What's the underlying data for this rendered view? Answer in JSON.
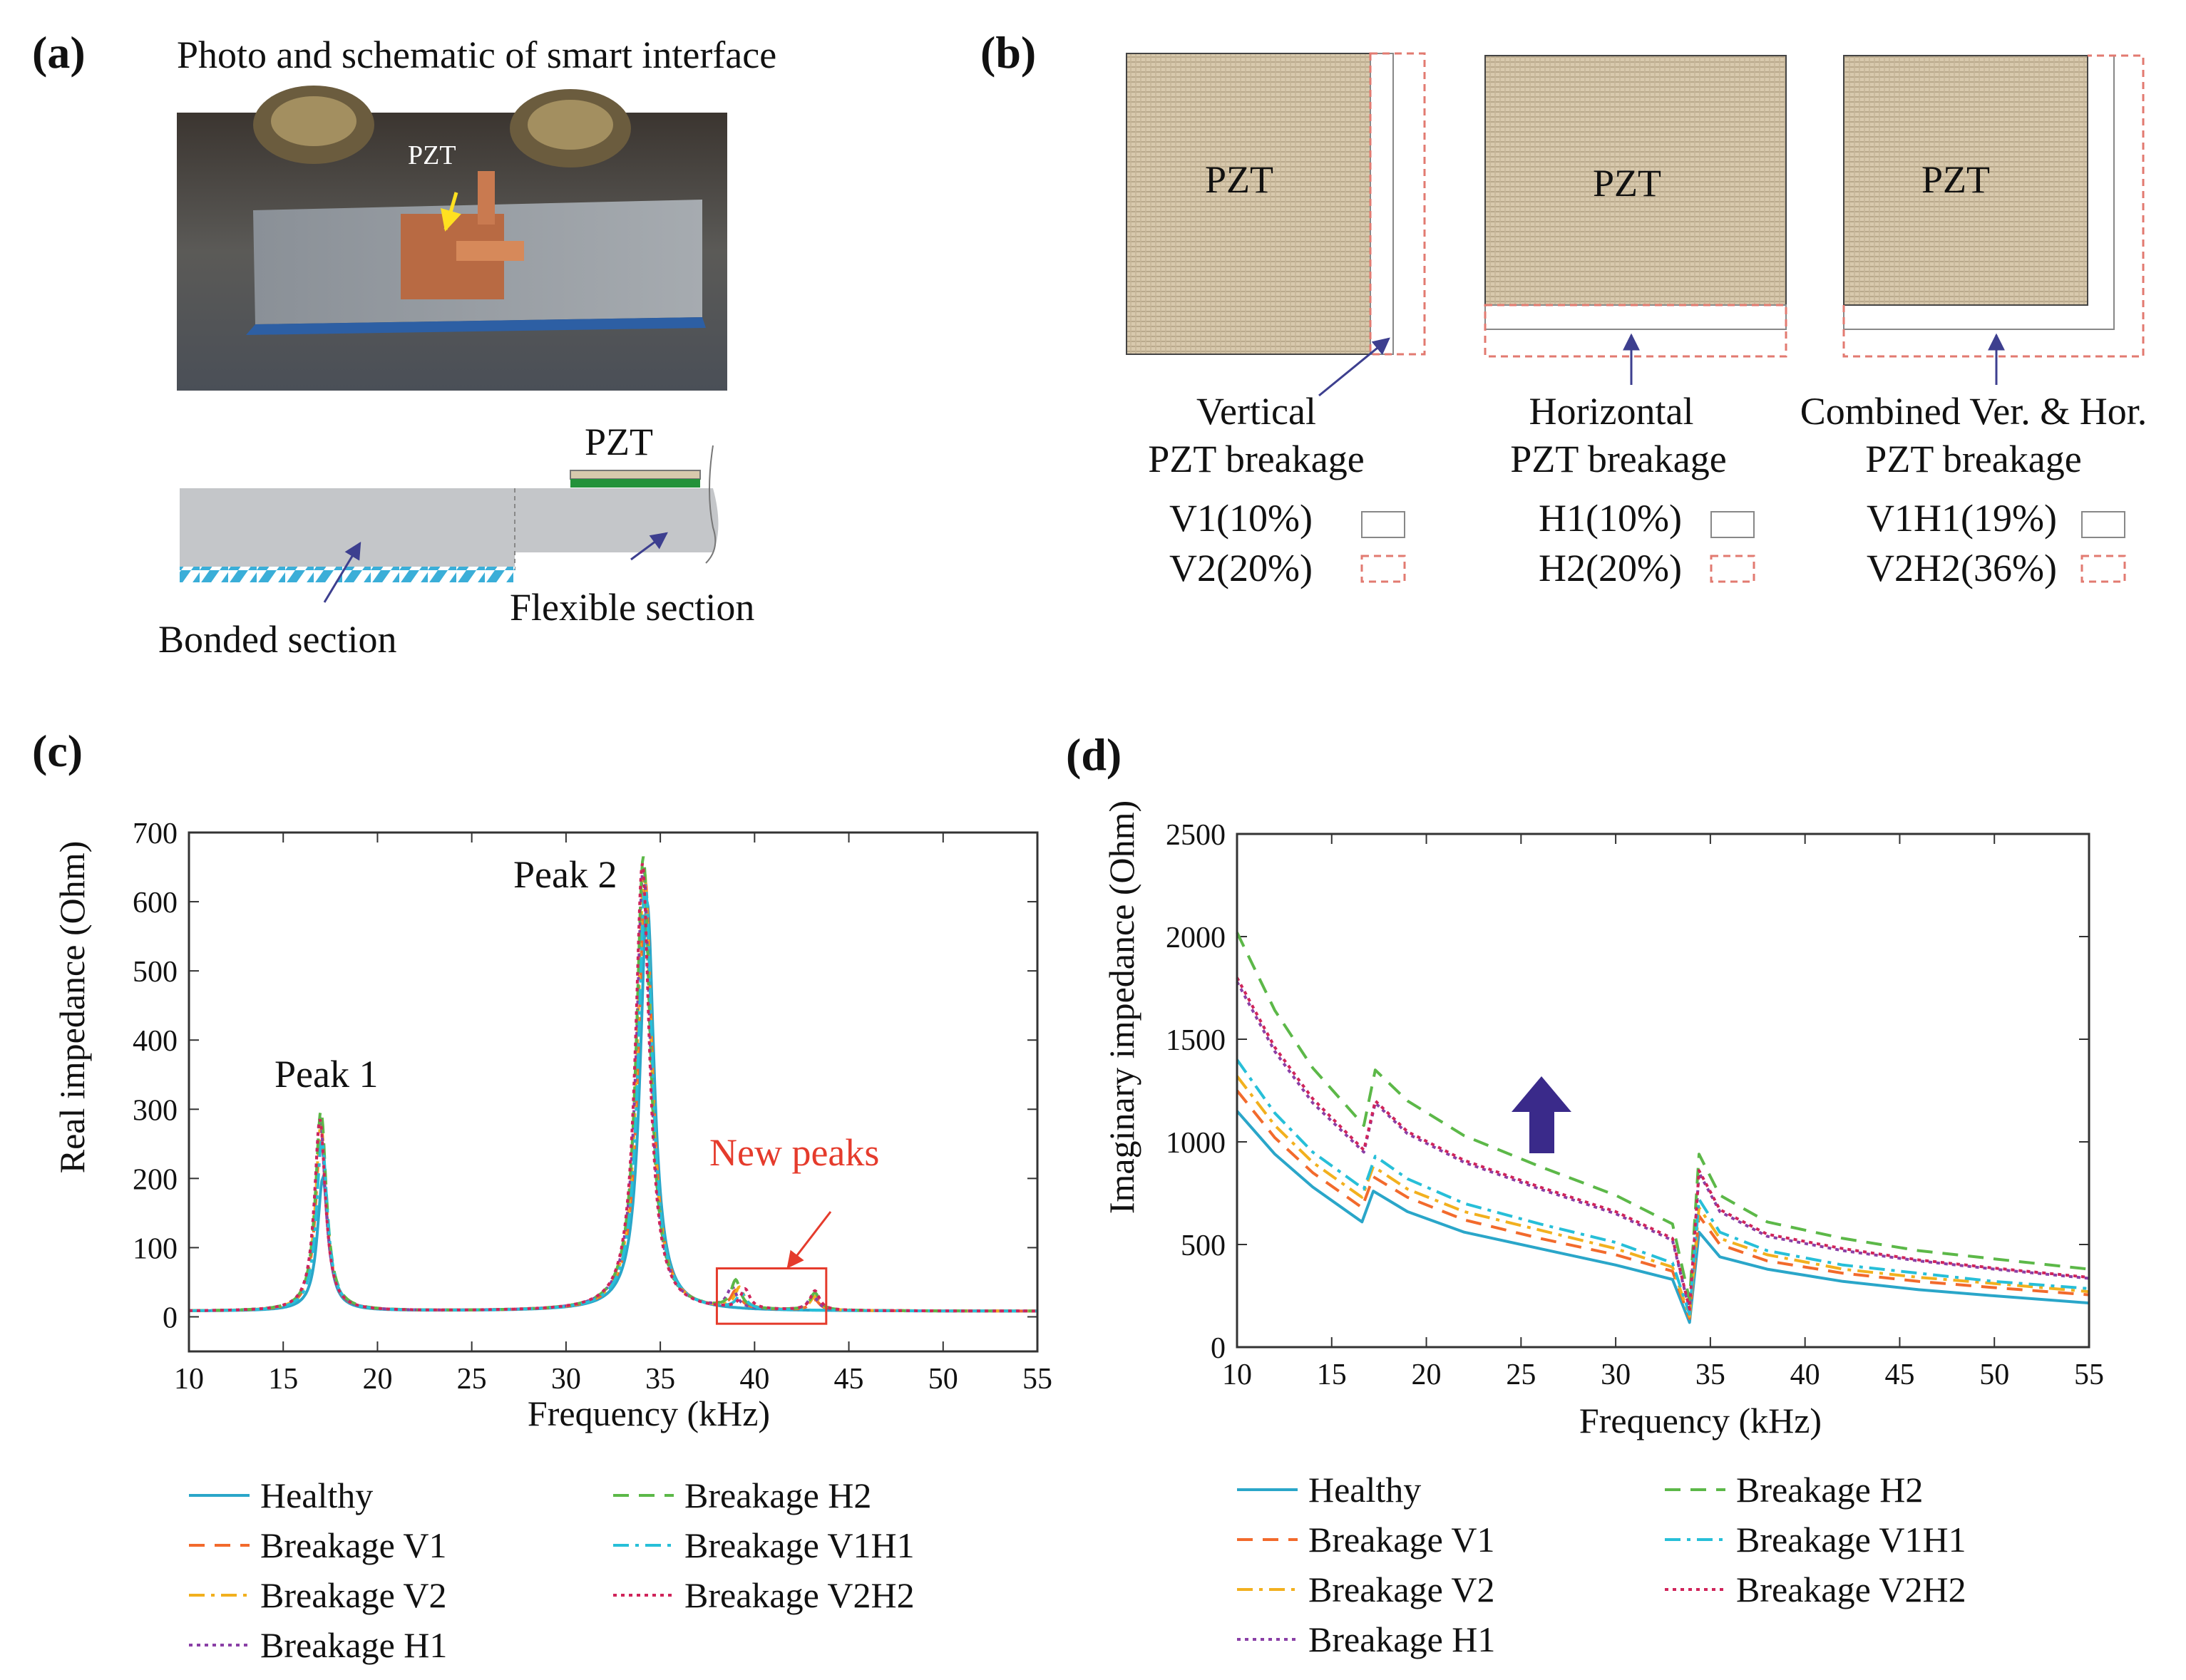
{
  "panel_a": {
    "label": "(a)",
    "title": "Photo and schematic of smart interface",
    "photo_label": "PZT",
    "schematic_label": "PZT",
    "bonded_label": "Bonded section",
    "flexible_label": "Flexible section"
  },
  "panel_b": {
    "label": "(b)",
    "pzt_text": "PZT",
    "groups": [
      {
        "title1": "Vertical",
        "title2": "PZT breakage",
        "solid_label": "V1(10%)",
        "dashed_label": "V2(20%)"
      },
      {
        "title1": "Horizontal",
        "title2": "PZT breakage",
        "solid_label": "H1(10%)",
        "dashed_label": "H2(20%)"
      },
      {
        "title1": "Combined Ver. & Hor.",
        "title2": "PZT breakage",
        "solid_label": "V1H1(19%)",
        "dashed_label": "V2H2(36%)"
      }
    ]
  },
  "colors": {
    "Healthy": "#2aa6c9",
    "Breakage V1": "#f26a2c",
    "Breakage V2": "#f2b01e",
    "Breakage H1": "#8a3fa6",
    "Breakage H2": "#5cb848",
    "Breakage V1H1": "#27bfd8",
    "Breakage V2H2": "#d0245a",
    "annotation": "#e53b2c",
    "arrow_big": "#3a2a8a",
    "arrow_small": "#3d3f8f",
    "pzt_fill": "#d8c9ad"
  },
  "legend_styles": {
    "Healthy": "solid",
    "Breakage V1": "dashed",
    "Breakage V2": "dashdot",
    "Breakage H1": "dotted",
    "Breakage H2": "dashed",
    "Breakage V1H1": "dashdot",
    "Breakage V2H2": "dotted"
  },
  "chart_data": [
    {
      "id": "c",
      "panel_label": "(c)",
      "type": "line",
      "xlabel": "Frequency (kHz)",
      "ylabel": "Real impedance (Ohm)",
      "xlim": [
        10,
        55
      ],
      "ylim": [
        -50,
        700
      ],
      "xticks": [
        10,
        15,
        20,
        25,
        30,
        35,
        40,
        45,
        50,
        55
      ],
      "yticks": [
        0,
        100,
        200,
        300,
        400,
        500,
        600,
        700
      ],
      "annotations": {
        "peak1": "Peak 1",
        "peak2": "Peak 2",
        "new_peaks": "New peaks"
      },
      "new_peaks_region": {
        "x": [
          38,
          43.8
        ],
        "y": [
          -10,
          70
        ]
      },
      "series": [
        {
          "name": "Healthy",
          "peak1": [
            17.1,
            200
          ],
          "peak2": [
            34.3,
            600
          ],
          "extra": []
        },
        {
          "name": "Breakage V1",
          "peak1": [
            17.0,
            262
          ],
          "peak2": [
            34.2,
            630
          ],
          "extra": [
            [
              39.0,
              25
            ],
            [
              43.2,
              15
            ]
          ]
        },
        {
          "name": "Breakage V2",
          "peak1": [
            17.0,
            278
          ],
          "peak2": [
            34.15,
            645
          ],
          "extra": [
            [
              39.2,
              30
            ],
            [
              43.2,
              20
            ]
          ]
        },
        {
          "name": "Breakage H1",
          "peak1": [
            16.95,
            288
          ],
          "peak2": [
            34.1,
            650
          ],
          "extra": [
            [
              38.8,
              30
            ],
            [
              43.1,
              22
            ]
          ]
        },
        {
          "name": "Breakage H2",
          "peak1": [
            17.0,
            298
          ],
          "peak2": [
            34.1,
            665
          ],
          "extra": [
            [
              39.0,
              40
            ],
            [
              43.2,
              25
            ]
          ]
        },
        {
          "name": "Breakage V1H1",
          "peak1": [
            17.05,
            255
          ],
          "peak2": [
            34.2,
            625
          ],
          "extra": [
            [
              39.3,
              22
            ]
          ]
        },
        {
          "name": "Breakage V2H2",
          "peak1": [
            16.95,
            285
          ],
          "peak2": [
            34.05,
            655
          ],
          "extra": [
            [
              39.5,
              28
            ],
            [
              43.2,
              28
            ]
          ]
        }
      ]
    },
    {
      "id": "d",
      "panel_label": "(d)",
      "type": "line",
      "xlabel": "Frequency (kHz)",
      "ylabel": "Imaginary impedance (Ohm)",
      "xlim": [
        10,
        55
      ],
      "ylim": [
        0,
        2500
      ],
      "xticks": [
        10,
        15,
        20,
        25,
        30,
        35,
        40,
        45,
        50,
        55
      ],
      "yticks": [
        0,
        500,
        1000,
        1500,
        2000,
        2500
      ],
      "series": [
        {
          "name": "Healthy",
          "points": [
            [
              10,
              1150
            ],
            [
              12,
              940
            ],
            [
              14,
              780
            ],
            [
              16.6,
              610
            ],
            [
              17.2,
              760
            ],
            [
              19,
              660
            ],
            [
              22,
              560
            ],
            [
              26,
              480
            ],
            [
              30,
              400
            ],
            [
              33,
              330
            ],
            [
              33.9,
              120
            ],
            [
              34.4,
              560
            ],
            [
              35.5,
              440
            ],
            [
              38,
              380
            ],
            [
              42,
              320
            ],
            [
              46,
              280
            ],
            [
              50,
              250
            ],
            [
              55,
              215
            ]
          ]
        },
        {
          "name": "Breakage V1",
          "points": [
            [
              10,
              1250
            ],
            [
              12,
              1020
            ],
            [
              14,
              850
            ],
            [
              16.6,
              680
            ],
            [
              17.2,
              830
            ],
            [
              19,
              730
            ],
            [
              22,
              620
            ],
            [
              26,
              530
            ],
            [
              30,
              450
            ],
            [
              33,
              370
            ],
            [
              33.9,
              140
            ],
            [
              34.4,
              640
            ],
            [
              35.5,
              500
            ],
            [
              38,
              420
            ],
            [
              42,
              360
            ],
            [
              46,
              320
            ],
            [
              50,
              290
            ],
            [
              55,
              255
            ]
          ]
        },
        {
          "name": "Breakage V2",
          "points": [
            [
              10,
              1320
            ],
            [
              12,
              1080
            ],
            [
              14,
              900
            ],
            [
              16.6,
              730
            ],
            [
              17.2,
              880
            ],
            [
              19,
              770
            ],
            [
              22,
              660
            ],
            [
              26,
              570
            ],
            [
              30,
              480
            ],
            [
              33,
              390
            ],
            [
              33.9,
              150
            ],
            [
              34.4,
              680
            ],
            [
              35.5,
              530
            ],
            [
              38,
              450
            ],
            [
              42,
              380
            ],
            [
              46,
              340
            ],
            [
              50,
              310
            ],
            [
              55,
              270
            ]
          ]
        },
        {
          "name": "Breakage H1",
          "points": [
            [
              10,
              1780
            ],
            [
              12,
              1440
            ],
            [
              14,
              1190
            ],
            [
              16.7,
              950
            ],
            [
              17.3,
              1190
            ],
            [
              19,
              1040
            ],
            [
              22,
              900
            ],
            [
              26,
              770
            ],
            [
              30,
              650
            ],
            [
              33,
              520
            ],
            [
              33.9,
              180
            ],
            [
              34.4,
              850
            ],
            [
              35.5,
              660
            ],
            [
              38,
              540
            ],
            [
              42,
              470
            ],
            [
              46,
              420
            ],
            [
              50,
              380
            ],
            [
              55,
              335
            ]
          ]
        },
        {
          "name": "Breakage H2",
          "points": [
            [
              10,
              2020
            ],
            [
              12,
              1640
            ],
            [
              14,
              1360
            ],
            [
              16.7,
              1080
            ],
            [
              17.3,
              1350
            ],
            [
              19,
              1200
            ],
            [
              22,
              1030
            ],
            [
              26,
              880
            ],
            [
              30,
              740
            ],
            [
              33,
              600
            ],
            [
              33.9,
              230
            ],
            [
              34.4,
              940
            ],
            [
              35.5,
              740
            ],
            [
              38,
              610
            ],
            [
              42,
              530
            ],
            [
              46,
              470
            ],
            [
              50,
              430
            ],
            [
              55,
              380
            ]
          ]
        },
        {
          "name": "Breakage V1H1",
          "points": [
            [
              10,
              1400
            ],
            [
              12,
              1140
            ],
            [
              14,
              950
            ],
            [
              16.7,
              770
            ],
            [
              17.3,
              930
            ],
            [
              19,
              820
            ],
            [
              22,
              700
            ],
            [
              26,
              600
            ],
            [
              30,
              510
            ],
            [
              33,
              410
            ],
            [
              33.9,
              160
            ],
            [
              34.4,
              720
            ],
            [
              35.5,
              560
            ],
            [
              38,
              470
            ],
            [
              42,
              400
            ],
            [
              46,
              360
            ],
            [
              50,
              320
            ],
            [
              55,
              285
            ]
          ]
        },
        {
          "name": "Breakage V2H2",
          "points": [
            [
              10,
              1800
            ],
            [
              12,
              1460
            ],
            [
              14,
              1210
            ],
            [
              16.7,
              960
            ],
            [
              17.3,
              1200
            ],
            [
              19,
              1050
            ],
            [
              22,
              910
            ],
            [
              26,
              780
            ],
            [
              30,
              660
            ],
            [
              33,
              530
            ],
            [
              33.9,
              185
            ],
            [
              34.4,
              860
            ],
            [
              35.5,
              670
            ],
            [
              38,
              550
            ],
            [
              42,
              480
            ],
            [
              46,
              425
            ],
            [
              50,
              385
            ],
            [
              55,
              340
            ]
          ]
        }
      ]
    }
  ]
}
